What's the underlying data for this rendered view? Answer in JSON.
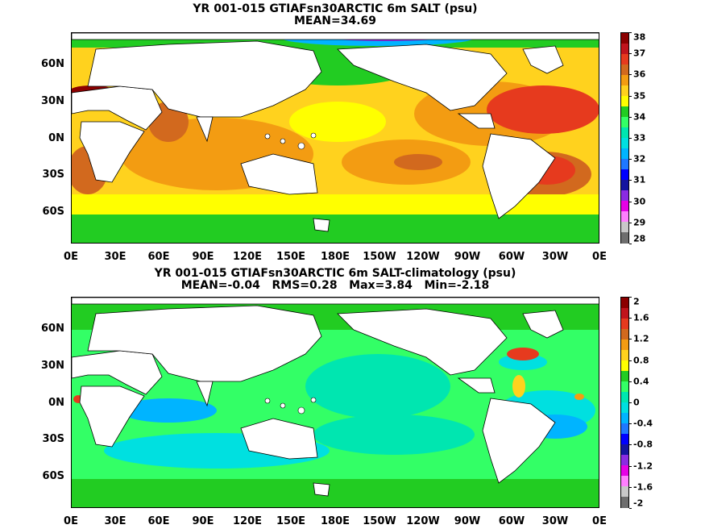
{
  "panels": [
    {
      "title": "YR 001-015 GTIAFsn30ARCTIC 6m SALT (psu)",
      "subtitle": "MEAN=34.69",
      "colorbar": {
        "labels": [
          "38",
          "37",
          "36",
          "35",
          "34",
          "33",
          "32",
          "31",
          "30",
          "29",
          "28"
        ],
        "colors": [
          "#8b0000",
          "#c0141c",
          "#e63a1e",
          "#d2691e",
          "#f39c12",
          "#ffd21e",
          "#ffff00",
          "#22cc22",
          "#33ff66",
          "#00e6b0",
          "#00e0e0",
          "#00b4ff",
          "#1e78ff",
          "#0000ff",
          "#1414a0",
          "#8a2be2",
          "#e600e6",
          "#ff7fff",
          "#c8c8c8",
          "#6e6e6e"
        ]
      },
      "mean_color": "#ffd21e"
    },
    {
      "title": "YR 001-015 GTIAFsn30ARCTIC 6m SALT-climatology (psu)",
      "subtitle": "MEAN=-0.04   RMS=0.28   Max=3.84   Min=-2.18",
      "colorbar": {
        "labels": [
          "2",
          "1.6",
          "1.2",
          "0.8",
          "0.4",
          "0",
          "-0.4",
          "-0.8",
          "-1.2",
          "-1.6",
          "-2"
        ],
        "colors": [
          "#8b0000",
          "#c0141c",
          "#e63a1e",
          "#d2691e",
          "#f39c12",
          "#ffd21e",
          "#ffff00",
          "#22cc22",
          "#33ff66",
          "#00e6b0",
          "#00e0e0",
          "#00b4ff",
          "#1e78ff",
          "#0000ff",
          "#1414a0",
          "#8a2be2",
          "#e600e6",
          "#ff7fff",
          "#c8c8c8",
          "#6e6e6e"
        ]
      },
      "mean_color": "#33ff66"
    }
  ],
  "axes": {
    "y_ticks": [
      "60N",
      "30N",
      "0N",
      "30S",
      "60S"
    ],
    "x_ticks": [
      "0E",
      "30E",
      "60E",
      "90E",
      "120E",
      "150E",
      "180E",
      "150W",
      "120W",
      "90W",
      "60W",
      "30W",
      "0E"
    ]
  }
}
